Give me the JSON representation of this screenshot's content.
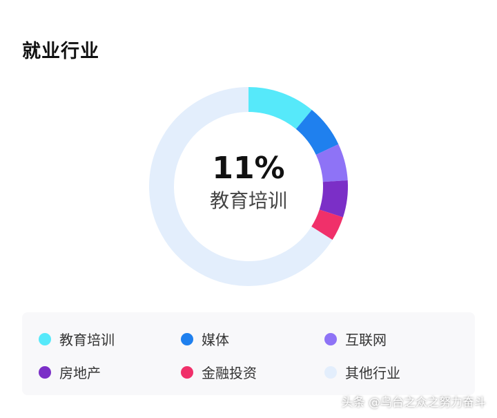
{
  "chart_data": {
    "type": "pie",
    "title": "就业行业",
    "center_value": "11%",
    "center_label": "教育培训",
    "categories": [
      "教育培训",
      "媒体",
      "互联网",
      "房地产",
      "金融投资",
      "其他行业"
    ],
    "values": [
      11,
      7,
      6,
      6,
      4,
      66
    ],
    "colors": [
      "#56E9FA",
      "#1F80EE",
      "#8E73F6",
      "#7B2FC7",
      "#F0306A",
      "#E3EEFC"
    ],
    "legend_position": "bottom"
  },
  "watermark": "头条 @乌台之众之努力奋斗"
}
